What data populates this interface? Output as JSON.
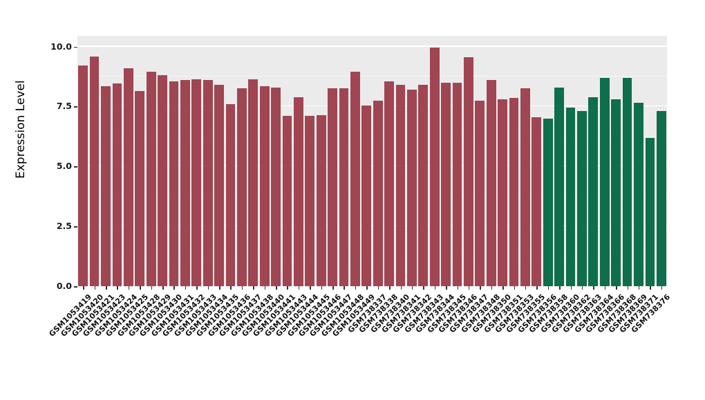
{
  "chart_data": {
    "type": "bar",
    "title": "",
    "xlabel": "",
    "ylabel": "Expression Level",
    "ylim": [
      0,
      10.45
    ],
    "yticks": [
      0,
      2.5,
      5,
      7.5,
      10
    ],
    "ytick_labels": [
      "0.0",
      "2.5",
      "5.0",
      "7.5",
      "10.0"
    ],
    "grid": "on",
    "legend": "none",
    "panel_bg": "#EBEBEB",
    "grid_color": "#FFFFFF",
    "groups": [
      {
        "name": "group-red",
        "color": "#A04552",
        "categories": [
          "GSM1053419",
          "GSM1053420",
          "GSM1053421",
          "GSM1053423",
          "GSM1053424",
          "GSM1053425",
          "GSM1053428",
          "GSM1053429",
          "GSM1053430",
          "GSM1053431",
          "GSM1053432",
          "GSM1053433",
          "GSM1053434",
          "GSM1053435",
          "GSM1053436",
          "GSM1053437",
          "GSM1053438",
          "GSM1053440",
          "GSM1053441",
          "GSM1053443",
          "GSM1053444",
          "GSM1053445",
          "GSM1053446",
          "GSM1053447",
          "GSM1053448",
          "GSM1053449",
          "GSM738337",
          "GSM738338",
          "GSM738340",
          "GSM738341",
          "GSM738342",
          "GSM738343",
          "GSM738344",
          "GSM738345",
          "GSM738346",
          "GSM738347",
          "GSM738348",
          "GSM738350",
          "GSM738351",
          "GSM738353",
          "GSM738355"
        ],
        "values": [
          9.2,
          9.6,
          8.35,
          8.45,
          9.1,
          8.15,
          8.95,
          8.8,
          8.55,
          8.6,
          8.65,
          8.6,
          8.4,
          7.6,
          8.25,
          8.65,
          8.35,
          8.3,
          7.1,
          7.9,
          7.1,
          7.15,
          8.25,
          8.25,
          8.95,
          7.55,
          7.75,
          8.55,
          8.4,
          8.2,
          8.4,
          9.95,
          8.5,
          8.5,
          9.55,
          7.75,
          8.6,
          7.8,
          7.85,
          8.25,
          7.05
        ]
      },
      {
        "name": "group-green",
        "color": "#0F6E4B",
        "categories": [
          "GSM738356",
          "GSM738358",
          "GSM738360",
          "GSM738362",
          "GSM738363",
          "GSM738364",
          "GSM738366",
          "GSM738368",
          "GSM738369",
          "GSM738371",
          "GSM738376"
        ],
        "values": [
          7.0,
          8.3,
          7.45,
          7.3,
          7.9,
          8.7,
          7.8,
          8.7,
          7.65,
          6.2,
          7.3
        ]
      }
    ]
  }
}
